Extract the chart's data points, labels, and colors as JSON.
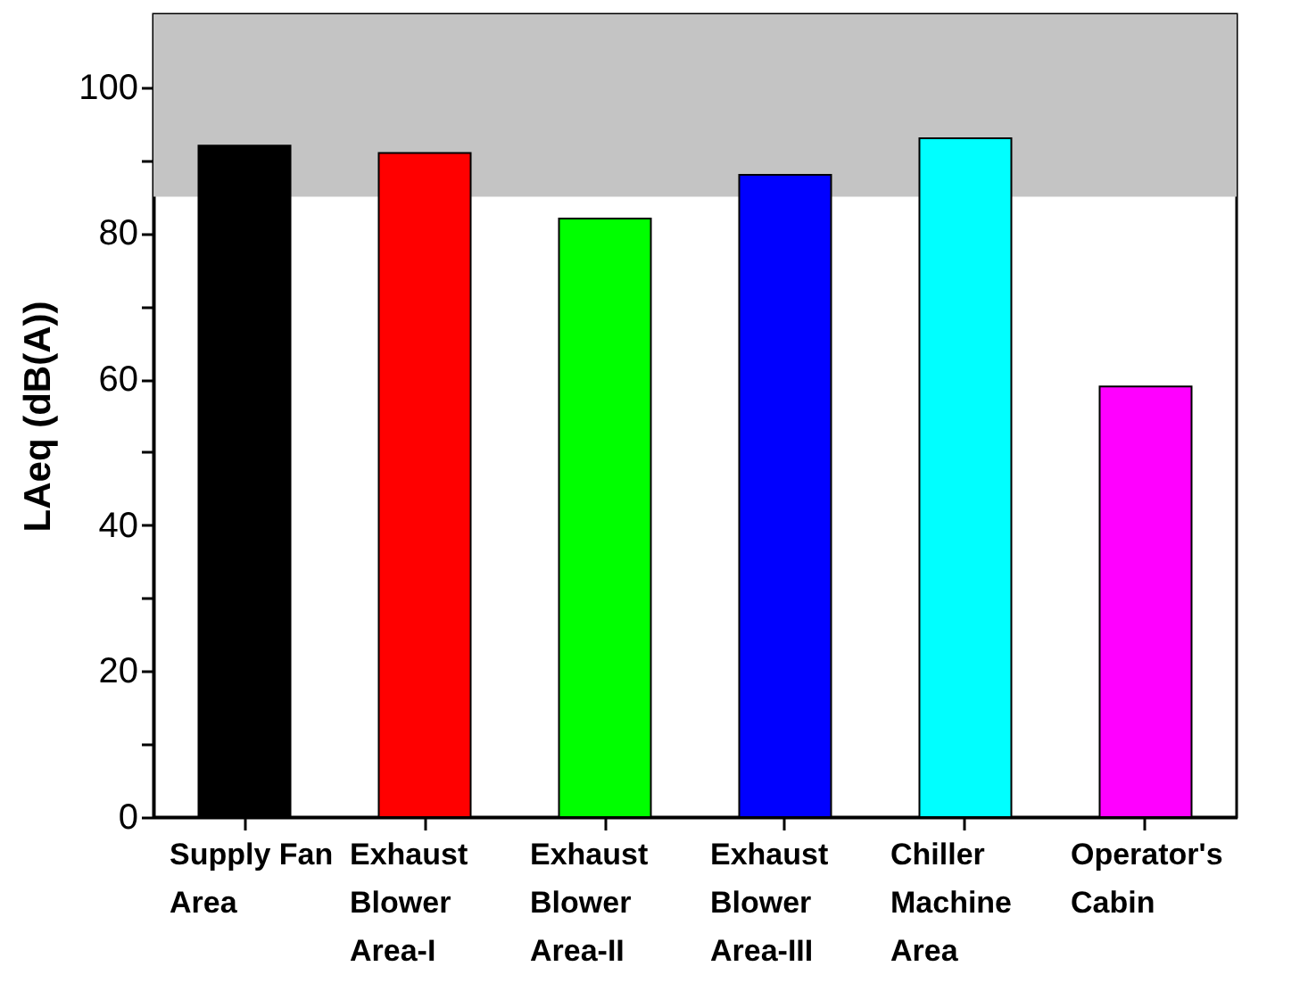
{
  "chart_data": {
    "type": "bar",
    "ylabel": "LAeq (dB(A))",
    "categories": [
      "Supply Fan\nArea",
      "Exhaust\nBlower\nArea-I",
      "Exhaust\nBlower\nArea-II",
      "Exhaust\nBlower\nArea-III",
      "Chiller\nMachine\nArea",
      "Operator's\nCabin"
    ],
    "values": [
      92,
      91,
      82,
      88,
      93,
      59
    ],
    "colors": [
      "#000000",
      "#ff0000",
      "#00ff00",
      "#0000ff",
      "#00ffff",
      "#ff00ff"
    ],
    "ylim": [
      0,
      110
    ],
    "yticks": [
      0,
      {
        "value": 10,
        "label": null
      },
      20,
      {
        "value": 30,
        "label": null
      },
      40,
      {
        "value": 50,
        "label": null
      },
      60,
      {
        "value": 70,
        "label": null
      },
      80,
      {
        "value": 90,
        "label": null
      },
      100
    ],
    "bands": [
      {
        "axis": "y",
        "from": 85,
        "to": 110,
        "color": "#c4c4c4"
      }
    ],
    "grid": false
  }
}
